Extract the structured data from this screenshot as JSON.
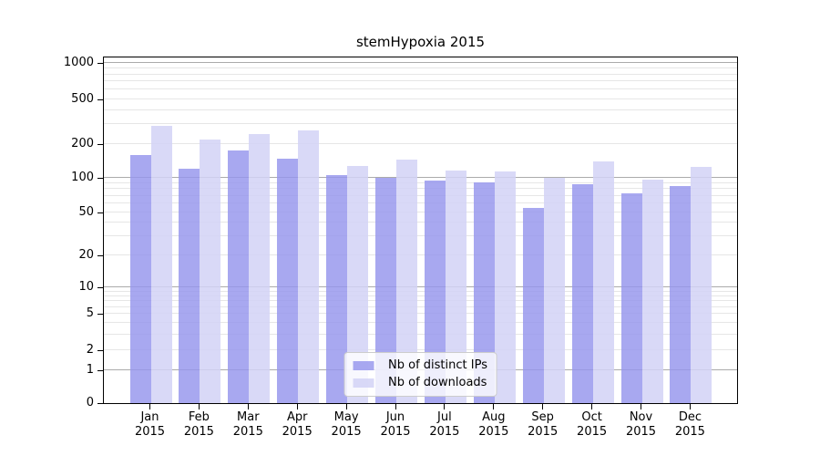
{
  "chart_data": {
    "type": "bar",
    "title": "stemHypoxia 2015",
    "categories": [
      "Jan 2015",
      "Feb 2015",
      "Mar 2015",
      "Apr 2015",
      "May 2015",
      "Jun 2015",
      "Jul 2015",
      "Aug 2015",
      "Sep 2015",
      "Oct 2015",
      "Nov 2015",
      "Dec 2015"
    ],
    "x_tick_months": [
      "Jan",
      "Feb",
      "Mar",
      "Apr",
      "May",
      "Jun",
      "Jul",
      "Aug",
      "Sep",
      "Oct",
      "Nov",
      "Dec"
    ],
    "x_tick_year": "2015",
    "series": [
      {
        "name": "Nb of distinct IPs",
        "color": "rgba(149,149,237,0.82)",
        "values": [
          160,
          120,
          176,
          148,
          106,
          100,
          96,
          92,
          55,
          88,
          74,
          85
        ]
      },
      {
        "name": "Nb of downloads",
        "color": "rgba(210,210,246,0.85)",
        "values": [
          287,
          217,
          246,
          262,
          129,
          146,
          116,
          114,
          100,
          139,
          97,
          125
        ]
      }
    ],
    "y_axis": {
      "scale": "log (symlog, linear segment between 0 and 1)",
      "tick_labels": [
        "0",
        "1",
        "2",
        "5",
        "10",
        "20",
        "50",
        "100",
        "200",
        "500",
        "1000"
      ],
      "tick_values": [
        0,
        1,
        2,
        5,
        10,
        20,
        50,
        100,
        200,
        500,
        1000
      ],
      "major_grid_values": [
        1,
        10,
        100,
        1000
      ],
      "grid": true,
      "range": [
        0,
        1150
      ]
    },
    "legend": {
      "position": "lower center",
      "items": [
        "Nb of distinct IPs",
        "Nb of downloads"
      ]
    }
  },
  "colors": {
    "bar_distinct_ips_hex": "#a8a8f0",
    "bar_downloads_hex": "#d9d9f7",
    "grid_minor": "#e6e6e6",
    "grid_major": "#ababab",
    "axis_line": "#000000",
    "legend_border": "#cccccc",
    "background": "#ffffff",
    "text": "#000000"
  }
}
